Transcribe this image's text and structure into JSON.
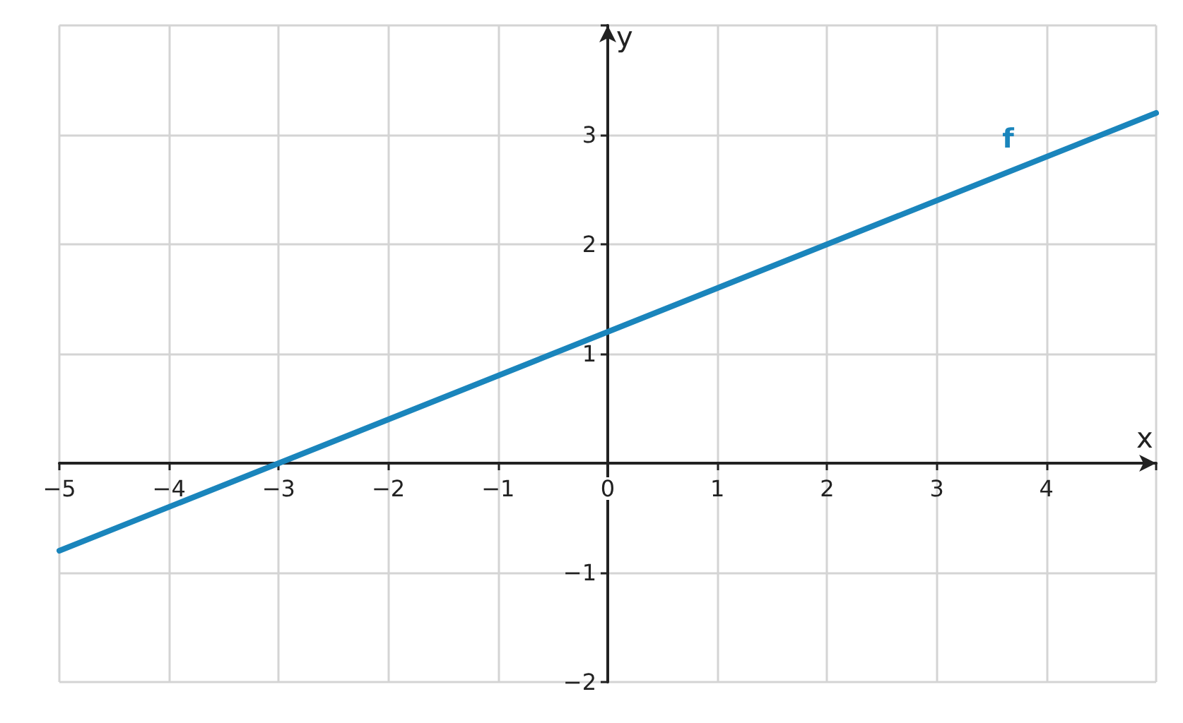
{
  "chart_data": {
    "type": "line",
    "xlabel": "x",
    "ylabel": "y",
    "series": [
      {
        "name": "f",
        "color": "#1a85bc",
        "x": [
          -5,
          5
        ],
        "values": [
          -0.8,
          3.2
        ]
      }
    ],
    "xlim": [
      -5,
      5
    ],
    "ylim": [
      -2,
      4
    ],
    "xticks": [
      -5,
      -4,
      -3,
      -2,
      -1,
      0,
      1,
      2,
      3,
      4
    ],
    "yticks": [
      -2,
      -1,
      1,
      2,
      3
    ],
    "grid": true,
    "legend": false,
    "marker": "none",
    "line_style": "solid"
  }
}
